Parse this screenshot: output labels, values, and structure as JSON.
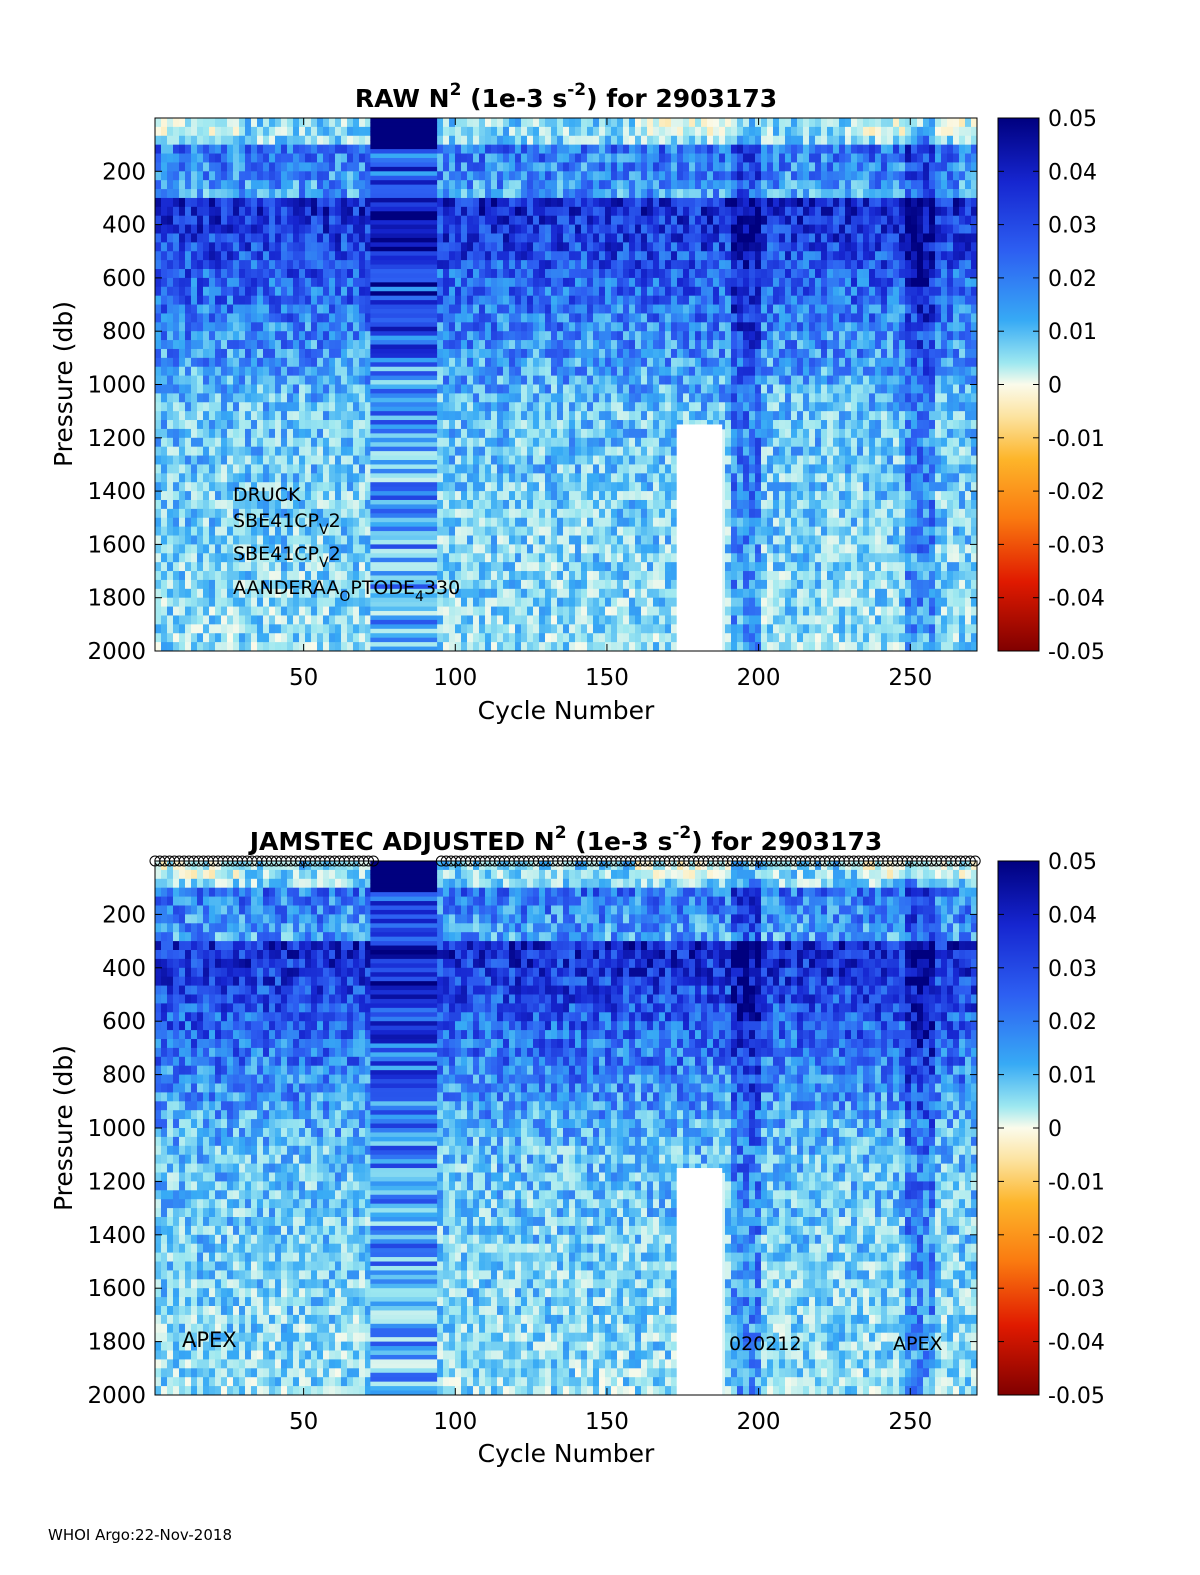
{
  "footer": "WHOI Argo:22-Nov-2018",
  "colorbar": {
    "ticks": [
      "0.05",
      "0.04",
      "0.03",
      "0.02",
      "0.01",
      "0",
      "-0.01",
      "-0.02",
      "-0.03",
      "-0.04",
      "-0.05"
    ],
    "range": [
      -0.05,
      0.05
    ],
    "colormap": "blue-cyan-white-yellow-red"
  },
  "chart_data": [
    {
      "type": "heatmap",
      "title": {
        "prefix": "RAW N",
        "sup1": "2",
        "mid": " (1e-3 s",
        "sup2": "-2",
        "suffix": ") for 2903173"
      },
      "xlabel": "Cycle Number",
      "ylabel": "Pressure (db)",
      "xlim": [
        1,
        272
      ],
      "ylim": [
        0,
        2000
      ],
      "y_reversed": true,
      "xticks": [
        "50",
        "100",
        "150",
        "200",
        "250"
      ],
      "yticks": [
        "200",
        "400",
        "600",
        "800",
        "1000",
        "1200",
        "1400",
        "1600",
        "1800",
        "2000"
      ],
      "annotations": [
        {
          "base": "DRUCK",
          "sub": "",
          "tail": ""
        },
        {
          "base": "SBE41CP",
          "sub": "V",
          "tail": "2"
        },
        {
          "base": "SBE41CP",
          "sub": "V",
          "tail": "2"
        },
        {
          "base": "AANDERAA",
          "sub": "O",
          "tail": "PTODE",
          "sub2": "4",
          "tail2": "330"
        }
      ],
      "top_markers": false
    },
    {
      "type": "heatmap",
      "title": {
        "prefix": "JAMSTEC  ADJUSTED N",
        "sup1": "2",
        "mid": " (1e-3 s",
        "sup2": "-2",
        "suffix": ") for 2903173"
      },
      "xlabel": "Cycle Number",
      "ylabel": "Pressure (db)",
      "xlim": [
        1,
        272
      ],
      "ylim": [
        0,
        2000
      ],
      "y_reversed": true,
      "xticks": [
        "50",
        "100",
        "150",
        "200",
        "250"
      ],
      "yticks": [
        "200",
        "400",
        "600",
        "800",
        "1000",
        "1200",
        "1400",
        "1600",
        "1800",
        "2000"
      ],
      "labels": {
        "left": "APEX",
        "mid": "020212",
        "right": "APEX"
      },
      "top_markers": true
    }
  ]
}
